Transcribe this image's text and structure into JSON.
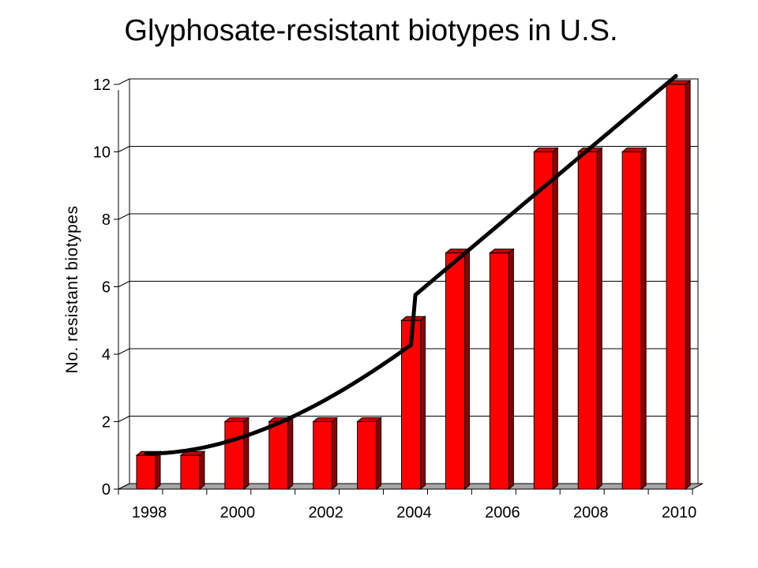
{
  "chart_data": {
    "type": "bar",
    "title": "Glyphosate-resistant biotypes in U.S.",
    "xlabel": "",
    "ylabel": "No. resistant biotypes",
    "categories": [
      "1998",
      "1999",
      "2000",
      "2001",
      "2002",
      "2003",
      "2004",
      "2005",
      "2006",
      "2007",
      "2008",
      "2009",
      "2010"
    ],
    "x_tick_labels": [
      "1998",
      "2000",
      "2002",
      "2004",
      "2006",
      "2008",
      "2010"
    ],
    "values": [
      1,
      1,
      2,
      2,
      2,
      2,
      5,
      7,
      7,
      10,
      10,
      10,
      12
    ],
    "ylim": [
      0,
      12
    ],
    "yticks": [
      0,
      2,
      4,
      6,
      8,
      10,
      12
    ],
    "grid": true,
    "trend_line": true,
    "colors": {
      "bar_front": "#ff0000",
      "bar_side": "#8b0000",
      "bar_top": "#c40000",
      "trend": "#000000",
      "floor": "#a6a6a6"
    }
  }
}
